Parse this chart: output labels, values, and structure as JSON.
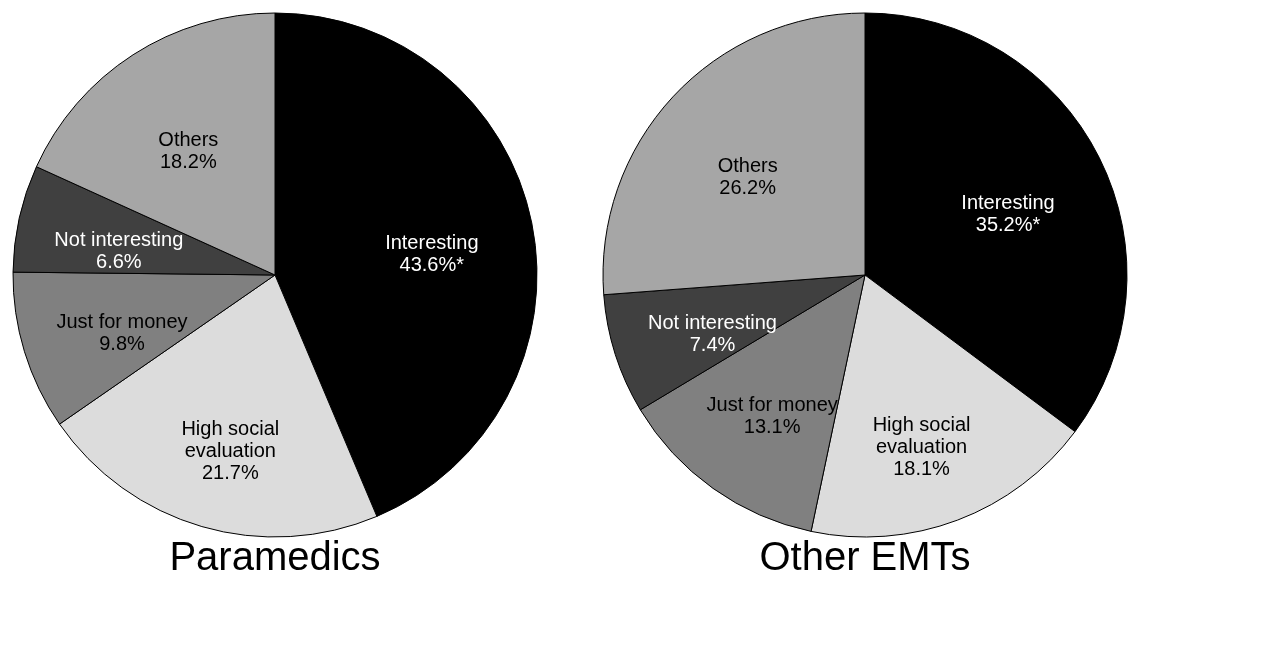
{
  "chart_data": [
    {
      "type": "pie",
      "title": "Paramedics",
      "categories": [
        "Interesting",
        "High social evaluation",
        "Just for money",
        "Not interesting",
        "Others"
      ],
      "values": [
        43.6,
        21.7,
        9.8,
        6.6,
        18.2
      ],
      "value_labels": [
        "43.6%*",
        "21.7%",
        "9.8%",
        "6.6%",
        "18.2%"
      ],
      "colors": [
        "#000000",
        "#dcdcdc",
        "#808080",
        "#404040",
        "#a6a6a6"
      ],
      "legend": false
    },
    {
      "type": "pie",
      "title": "Other EMTs",
      "categories": [
        "Interesting",
        "High social evaluation",
        "Just for money",
        "Not interesting",
        "Others"
      ],
      "values": [
        35.2,
        18.1,
        13.1,
        7.4,
        26.2
      ],
      "value_labels": [
        "35.2%*",
        "18.1%",
        "13.1%",
        "7.4%",
        "26.2%"
      ],
      "colors": [
        "#000000",
        "#dcdcdc",
        "#808080",
        "#404040",
        "#a6a6a6"
      ],
      "legend": false
    }
  ]
}
